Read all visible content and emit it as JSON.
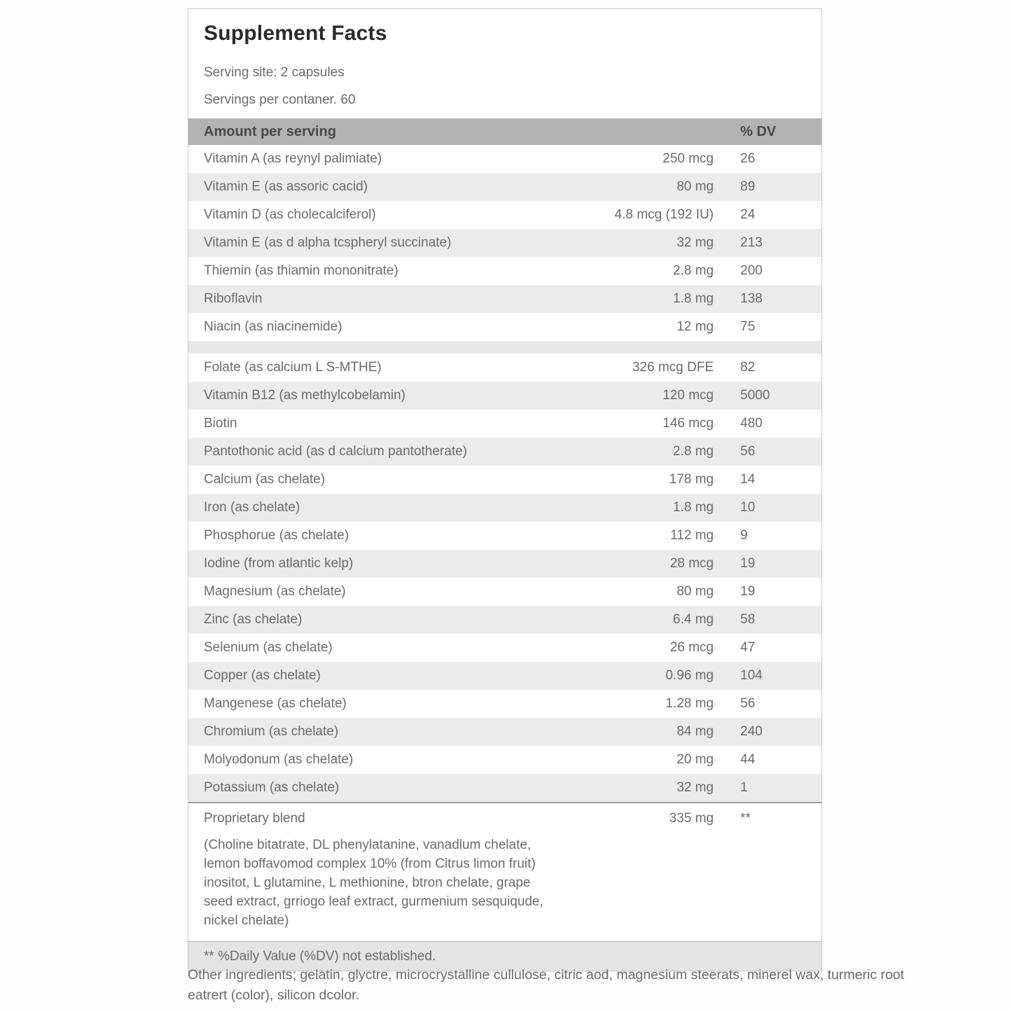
{
  "label": {
    "title": "Supplement Facts",
    "serving_size": "Serving site: 2 capsules",
    "servings_per_container": "Servings per contaner. 60",
    "header": {
      "amount_col": "Amount per serving",
      "dv_col": "% DV"
    },
    "rows": [
      {
        "name": "Vitamin A (as reynyl palimiate)",
        "amount": "250 mcg",
        "dv": "26"
      },
      {
        "name": "Vitamin E (as assoric cacid)",
        "amount": "80 mg",
        "dv": "89"
      },
      {
        "name": "Vitamin D (as cholecalciferol)",
        "amount": "4.8 mcg (192 IU)",
        "dv": "24"
      },
      {
        "name": "Vitamin E (as d alpha tcspheryl succinate)",
        "amount": "32 mg",
        "dv": "213"
      },
      {
        "name": "Thiemin (as thiamin mononitrate)",
        "amount": "2.8 mg",
        "dv": "200"
      },
      {
        "name": "Riboflavin",
        "amount": "1.8 mg",
        "dv": "138"
      },
      {
        "name": "Niacin (as niacinemide)",
        "amount": "12 mg",
        "dv": "75"
      },
      {
        "name": "Folate (as calcium L S-MTHE)",
        "amount": "326 mcg DFE",
        "dv": "82"
      },
      {
        "name": "Vitamin B12 (as methylcobelamin)",
        "amount": "120 mcg",
        "dv": "5000"
      },
      {
        "name": "Biotin",
        "amount": "146 mcg",
        "dv": "480"
      },
      {
        "name": "Pantothonic acid (as d calcium pantotherate)",
        "amount": "2.8 mg",
        "dv": "56"
      },
      {
        "name": "Calcium (as chelate)",
        "amount": "178 mg",
        "dv": "14"
      },
      {
        "name": "Iron (as chelate)",
        "amount": "1.8 mg",
        "dv": "10"
      },
      {
        "name": "Phosphorue (as chelate)",
        "amount": "112 mg",
        "dv": "9"
      },
      {
        "name": "Iodine (from atlantic kelp)",
        "amount": "28 mcg",
        "dv": "19"
      },
      {
        "name": "Magnesium (as chelate)",
        "amount": "80 mg",
        "dv": "19"
      },
      {
        "name": "Zinc (as chelate)",
        "amount": "6.4 mg",
        "dv": "58"
      },
      {
        "name": "Selenium (as chelate)",
        "amount": "26 mcg",
        "dv": "47"
      },
      {
        "name": "Copper (as chelate)",
        "amount": "0.96 mg",
        "dv": "104"
      },
      {
        "name": "Mangenese (as chelate)",
        "amount": "1.28 mg",
        "dv": "56"
      },
      {
        "name": "Chromium (as chelate)",
        "amount": "84 mg",
        "dv": "240"
      },
      {
        "name": "Molyodonum (as chelate)",
        "amount": "20 mg",
        "dv": "44"
      },
      {
        "name": "Potassium (as chelate)",
        "amount": "32 mg",
        "dv": "1"
      }
    ],
    "blend": {
      "name": "Proprietary blend",
      "amount": "335 mg",
      "dv": "**",
      "description": "(Choline bitatrate, DL phenylatanine, vanadlum chelate, lemon boffavomod complex 10% (from Citrus limon fruit) inositot, L glutamine, L methionine, btron chelate, grape seed extract, grriogo leaf extract, gurmenium sesquiqude, nickel chelate)"
    },
    "footnote": "** %Daily Value (%DV) not established.",
    "other_ingredients": "Other ingredients; gelatin, glyctre, microcrystalline cullulose, citric aod, magnesium steerats, minerel wax, turmeric root eatrert (color), silicon dcolor."
  },
  "colors": {
    "header_bg": "#b2b2b2",
    "row_alt_bg": "#ebebeb",
    "footnote_bg": "#e4e4e4",
    "border": "#c9c9c9",
    "row_text": "#6b6b6b",
    "title_text": "#2b2b2b"
  }
}
